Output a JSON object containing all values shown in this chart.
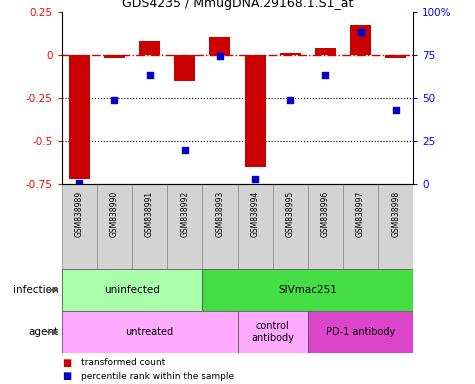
{
  "title": "GDS4235 / MmugDNA.29168.1.S1_at",
  "samples": [
    "GSM838989",
    "GSM838990",
    "GSM838991",
    "GSM838992",
    "GSM838993",
    "GSM838994",
    "GSM838995",
    "GSM838996",
    "GSM838997",
    "GSM838998"
  ],
  "bar_values": [
    -0.72,
    -0.02,
    0.08,
    -0.15,
    0.1,
    -0.65,
    0.01,
    0.04,
    0.17,
    -0.02
  ],
  "percentile_values": [
    1,
    49,
    63,
    20,
    74,
    3,
    49,
    63,
    88,
    43
  ],
  "ylim_left": [
    -0.75,
    0.25
  ],
  "ylim_right": [
    0,
    100
  ],
  "yticks_left": [
    -0.75,
    -0.5,
    -0.25,
    0,
    0.25
  ],
  "yticks_right": [
    0,
    25,
    50,
    75,
    100
  ],
  "bar_color": "#cc0000",
  "dot_color": "#0000cc",
  "dotted_lines": [
    -0.25,
    -0.5
  ],
  "infection_groups": [
    {
      "label": "uninfected",
      "start": 0,
      "end": 4,
      "color": "#aaffaa"
    },
    {
      "label": "SIVmac251",
      "start": 4,
      "end": 10,
      "color": "#44dd44"
    }
  ],
  "agent_groups": [
    {
      "label": "untreated",
      "start": 0,
      "end": 5,
      "color": "#ffaaff"
    },
    {
      "label": "control\nantibody",
      "start": 5,
      "end": 7,
      "color": "#ffaaff"
    },
    {
      "label": "PD-1 antibody",
      "start": 7,
      "end": 10,
      "color": "#dd44cc"
    }
  ],
  "legend_items": [
    {
      "label": "transformed count",
      "color": "#cc0000"
    },
    {
      "label": "percentile rank within the sample",
      "color": "#0000cc"
    }
  ],
  "sample_bg": "#d3d3d3",
  "background_color": "#ffffff"
}
